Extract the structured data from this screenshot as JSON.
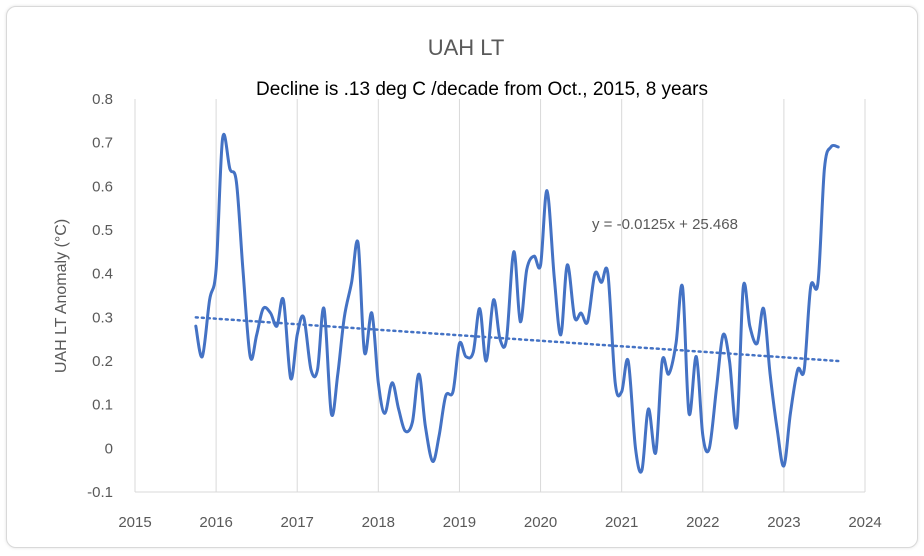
{
  "chart_data": {
    "type": "line",
    "title": "UAH LT",
    "subtitle": "Decline is .13 deg C /decade from Oct., 2015,  8 years",
    "xlabel": "",
    "ylabel": "UAH  LT Anomaly (°C)",
    "xlim": [
      2015,
      2024
    ],
    "ylim": [
      -0.1,
      0.8
    ],
    "x_ticks": [
      2015,
      2016,
      2017,
      2018,
      2019,
      2020,
      2021,
      2022,
      2023,
      2024
    ],
    "y_ticks": [
      "-0.1",
      "0",
      "0.1",
      "0.2",
      "0.3",
      "0.4",
      "0.5",
      "0.6",
      "0.7",
      "0.8"
    ],
    "grid": "vertical",
    "line_color": "#4472C4",
    "trendline": {
      "equation": "y = -0.0125x + 25.468",
      "x": [
        2015.75,
        2023.67
      ],
      "y": [
        0.3,
        0.2
      ],
      "style": "dotted"
    },
    "series": [
      {
        "x": [
          2015.75,
          2015.83,
          2015.92,
          2016.0,
          2016.08,
          2016.17,
          2016.25,
          2016.33,
          2016.42,
          2016.5,
          2016.58,
          2016.67,
          2016.75,
          2016.83,
          2016.92,
          2017.0,
          2017.08,
          2017.17,
          2017.25,
          2017.33,
          2017.42,
          2017.5,
          2017.58,
          2017.67,
          2017.75,
          2017.83,
          2017.92,
          2018.0,
          2018.08,
          2018.17,
          2018.25,
          2018.33,
          2018.42,
          2018.5,
          2018.58,
          2018.67,
          2018.75,
          2018.83,
          2018.92,
          2019.0,
          2019.08,
          2019.17,
          2019.25,
          2019.33,
          2019.42,
          2019.5,
          2019.58,
          2019.67,
          2019.75,
          2019.83,
          2019.92,
          2020.0,
          2020.08,
          2020.17,
          2020.25,
          2020.33,
          2020.42,
          2020.5,
          2020.58,
          2020.67,
          2020.75,
          2020.83,
          2020.92,
          2021.0,
          2021.08,
          2021.17,
          2021.25,
          2021.33,
          2021.42,
          2021.5,
          2021.58,
          2021.67,
          2021.75,
          2021.83,
          2021.92,
          2022.0,
          2022.08,
          2022.17,
          2022.25,
          2022.33,
          2022.42,
          2022.5,
          2022.58,
          2022.67,
          2022.75,
          2022.83,
          2022.92,
          2023.0,
          2023.08,
          2023.17,
          2023.25,
          2023.33,
          2023.42,
          2023.5,
          2023.58,
          2023.67
        ],
        "y": [
          0.28,
          0.21,
          0.34,
          0.41,
          0.71,
          0.64,
          0.61,
          0.41,
          0.21,
          0.26,
          0.32,
          0.31,
          0.28,
          0.34,
          0.16,
          0.26,
          0.3,
          0.18,
          0.18,
          0.32,
          0.08,
          0.17,
          0.3,
          0.38,
          0.47,
          0.22,
          0.31,
          0.15,
          0.08,
          0.15,
          0.09,
          0.04,
          0.06,
          0.17,
          0.05,
          -0.03,
          0.03,
          0.12,
          0.13,
          0.24,
          0.21,
          0.22,
          0.32,
          0.2,
          0.34,
          0.25,
          0.25,
          0.45,
          0.29,
          0.41,
          0.44,
          0.42,
          0.59,
          0.39,
          0.26,
          0.42,
          0.3,
          0.31,
          0.29,
          0.4,
          0.38,
          0.4,
          0.15,
          0.13,
          0.2,
          0.0,
          -0.05,
          0.09,
          -0.01,
          0.2,
          0.17,
          0.24,
          0.37,
          0.08,
          0.21,
          0.03,
          0.0,
          0.14,
          0.26,
          0.2,
          0.05,
          0.37,
          0.28,
          0.24,
          0.32,
          0.17,
          0.04,
          -0.04,
          0.08,
          0.18,
          0.18,
          0.37,
          0.38,
          0.64,
          0.69,
          0.69
        ]
      }
    ]
  }
}
